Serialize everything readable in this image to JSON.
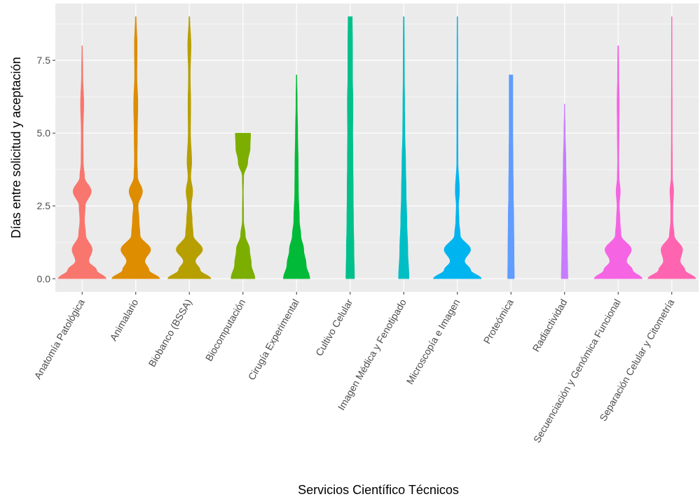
{
  "chart_data": {
    "type": "violin",
    "title": "",
    "xlabel": "Servicios Científico Técnicos",
    "ylabel": "Días entre solicitud y aceptación",
    "ylim": [
      -0.45,
      9.45
    ],
    "yticks": [
      0.0,
      2.5,
      5.0,
      7.5
    ],
    "ytick_labels": [
      "0.0",
      "2.5",
      "5.0",
      "7.5"
    ],
    "grid": true,
    "legend": "none",
    "background": "#ebebeb",
    "gridline_color": "#ffffff",
    "categories": [
      "Anatomía Patológica",
      "Animalario",
      "Biobanco (BSSA)",
      "Biocomputación",
      "Cirugía Experimental",
      "Cultivo Celular",
      "Imagen Médica y Fenotipado",
      "Microscopía e Imagen",
      "Proteómica",
      "Radiactividad",
      "Secuenciación y Genómica Funcional",
      "Separación Celular y Citometría"
    ],
    "colors": [
      "#F8766D",
      "#DE8C00",
      "#B79F00",
      "#7CAE00",
      "#00BA38",
      "#00C08B",
      "#00BFC4",
      "#00B4F0",
      "#619CFF",
      "#C77CFF",
      "#F564E3",
      "#FF64B0"
    ],
    "violins": [
      {
        "name": "Anatomía Patológica",
        "ymin": 0,
        "ymax": 8,
        "profile": [
          [
            0,
            1.0
          ],
          [
            0.3,
            0.6
          ],
          [
            0.6,
            0.28
          ],
          [
            1,
            0.42
          ],
          [
            1.5,
            0.15
          ],
          [
            2,
            0.1
          ],
          [
            2.5,
            0.13
          ],
          [
            3,
            0.38
          ],
          [
            3.5,
            0.1
          ],
          [
            4,
            0.05
          ],
          [
            5,
            0.04
          ],
          [
            6,
            0.07
          ],
          [
            7,
            0.03
          ],
          [
            8,
            0.015
          ]
        ]
      },
      {
        "name": "Animalario",
        "ymin": 0,
        "ymax": 9,
        "profile": [
          [
            0,
            1.0
          ],
          [
            0.3,
            0.55
          ],
          [
            0.6,
            0.38
          ],
          [
            1,
            0.62
          ],
          [
            1.5,
            0.18
          ],
          [
            2,
            0.14
          ],
          [
            2.5,
            0.1
          ],
          [
            3,
            0.28
          ],
          [
            3.5,
            0.08
          ],
          [
            4,
            0.06
          ],
          [
            5,
            0.07
          ],
          [
            6,
            0.09
          ],
          [
            7,
            0.05
          ],
          [
            8,
            0.06
          ],
          [
            9,
            0.02
          ]
        ]
      },
      {
        "name": "Biobanco (BSSA)",
        "ymin": 0,
        "ymax": 9,
        "profile": [
          [
            0,
            0.9
          ],
          [
            0.3,
            0.45
          ],
          [
            0.6,
            0.25
          ],
          [
            1,
            0.55
          ],
          [
            1.5,
            0.16
          ],
          [
            2,
            0.12
          ],
          [
            2.5,
            0.08
          ],
          [
            3,
            0.14
          ],
          [
            3.5,
            0.06
          ],
          [
            4,
            0.1
          ],
          [
            5,
            0.05
          ],
          [
            6,
            0.06
          ],
          [
            7,
            0.04
          ],
          [
            8,
            0.07
          ],
          [
            9,
            0.02
          ]
        ]
      },
      {
        "name": "Biocomputación",
        "ymin": 0,
        "ymax": 5,
        "profile": [
          [
            0,
            0.5
          ],
          [
            0.5,
            0.35
          ],
          [
            1,
            0.28
          ],
          [
            1.5,
            0.1
          ],
          [
            2,
            0.03
          ],
          [
            3,
            0.02
          ],
          [
            3.5,
            0.03
          ],
          [
            4,
            0.2
          ],
          [
            4.5,
            0.3
          ],
          [
            5,
            0.32
          ]
        ]
      },
      {
        "name": "Cirugía Experimental",
        "ymin": 0,
        "ymax": 7,
        "profile": [
          [
            0,
            0.55
          ],
          [
            0.5,
            0.4
          ],
          [
            1,
            0.3
          ],
          [
            1.5,
            0.18
          ],
          [
            2,
            0.12
          ],
          [
            3,
            0.08
          ],
          [
            4,
            0.07
          ],
          [
            5,
            0.05
          ],
          [
            6,
            0.03
          ],
          [
            7,
            0.015
          ]
        ]
      },
      {
        "name": "Cultivo Celular",
        "ymin": 0,
        "ymax": 9,
        "profile": [
          [
            0,
            0.18
          ],
          [
            1,
            0.16
          ],
          [
            2,
            0.14
          ],
          [
            3,
            0.13
          ],
          [
            4,
            0.12
          ],
          [
            5,
            0.11
          ],
          [
            6,
            0.12
          ],
          [
            7,
            0.1
          ],
          [
            8,
            0.1
          ],
          [
            9,
            0.09
          ]
        ]
      },
      {
        "name": "Imagen Médica y Fenotipado",
        "ymin": 0,
        "ymax": 9,
        "profile": [
          [
            0,
            0.22
          ],
          [
            1,
            0.17
          ],
          [
            2,
            0.13
          ],
          [
            3,
            0.1
          ],
          [
            4,
            0.08
          ],
          [
            5,
            0.05
          ],
          [
            6,
            0.04
          ],
          [
            7,
            0.03
          ],
          [
            8,
            0.025
          ],
          [
            9,
            0.02
          ]
        ]
      },
      {
        "name": "Microscopía e Imagen",
        "ymin": 0,
        "ymax": 9,
        "profile": [
          [
            0,
            1.0
          ],
          [
            0.3,
            0.55
          ],
          [
            0.6,
            0.3
          ],
          [
            1,
            0.55
          ],
          [
            1.5,
            0.12
          ],
          [
            2,
            0.07
          ],
          [
            2.5,
            0.05
          ],
          [
            3,
            0.09
          ],
          [
            4,
            0.03
          ],
          [
            5,
            0.025
          ],
          [
            6,
            0.025
          ],
          [
            7,
            0.02
          ],
          [
            8,
            0.02
          ],
          [
            9,
            0.015
          ]
        ]
      },
      {
        "name": "Proteómica",
        "ymin": 0,
        "ymax": 7,
        "profile": [
          [
            0,
            0.14
          ],
          [
            1,
            0.13
          ],
          [
            2,
            0.12
          ],
          [
            3,
            0.1
          ],
          [
            4,
            0.09
          ],
          [
            5,
            0.08
          ],
          [
            6,
            0.08
          ],
          [
            7,
            0.08
          ]
        ]
      },
      {
        "name": "Radiactividad",
        "ymin": 0,
        "ymax": 6,
        "profile": [
          [
            0,
            0.14
          ],
          [
            1,
            0.12
          ],
          [
            2,
            0.1
          ],
          [
            3,
            0.08
          ],
          [
            4,
            0.06
          ],
          [
            5,
            0.03
          ],
          [
            6,
            0.01
          ]
        ]
      },
      {
        "name": "Secuenciación y Genómica Funcional",
        "ymin": 0,
        "ymax": 8,
        "profile": [
          [
            0,
            1.0
          ],
          [
            0.3,
            0.6
          ],
          [
            0.6,
            0.35
          ],
          [
            1,
            0.55
          ],
          [
            1.5,
            0.12
          ],
          [
            2,
            0.08
          ],
          [
            2.5,
            0.05
          ],
          [
            3,
            0.09
          ],
          [
            3.5,
            0.04
          ],
          [
            4,
            0.03
          ],
          [
            5,
            0.04
          ],
          [
            6,
            0.05
          ],
          [
            7,
            0.03
          ],
          [
            8,
            0.02
          ]
        ]
      },
      {
        "name": "Separación Celular y Citometría",
        "ymin": 0,
        "ymax": 9,
        "profile": [
          [
            0,
            1.0
          ],
          [
            0.3,
            0.55
          ],
          [
            0.6,
            0.35
          ],
          [
            1,
            0.45
          ],
          [
            1.5,
            0.1
          ],
          [
            2,
            0.05
          ],
          [
            2.5,
            0.05
          ],
          [
            3,
            0.08
          ],
          [
            3.5,
            0.03
          ],
          [
            4,
            0.025
          ],
          [
            5,
            0.02
          ],
          [
            6,
            0.02
          ],
          [
            7,
            0.015
          ],
          [
            8,
            0.015
          ],
          [
            9,
            0.01
          ]
        ]
      }
    ]
  }
}
